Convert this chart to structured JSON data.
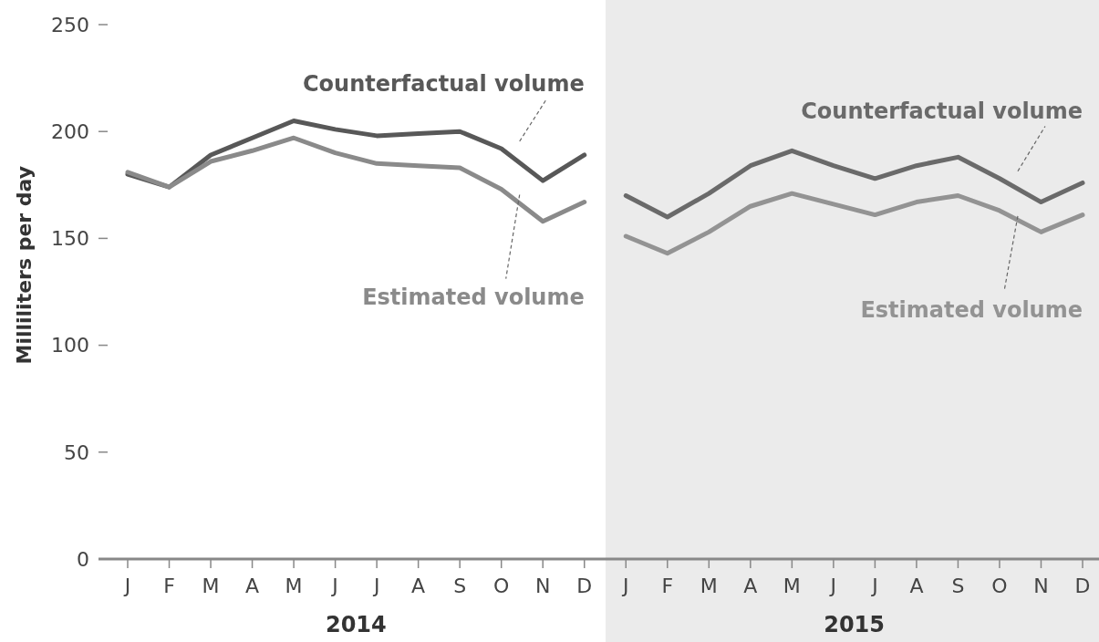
{
  "chart_data": {
    "type": "line",
    "ylabel": "Milliliters per day",
    "ylim": [
      0,
      250
    ],
    "yticks": [
      0,
      50,
      100,
      150,
      200,
      250
    ],
    "categories": [
      "J",
      "F",
      "M",
      "A",
      "M",
      "J",
      "J",
      "A",
      "S",
      "O",
      "N",
      "D",
      "J",
      "F",
      "M",
      "A",
      "M",
      "J",
      "J",
      "A",
      "S",
      "O",
      "N",
      "D"
    ],
    "annotations": [
      "2014",
      "2015"
    ],
    "series": [
      {
        "name": "Counterfactual volume",
        "color": "#585858",
        "values": [
          180,
          174,
          189,
          197,
          205,
          201,
          198,
          199,
          200,
          192,
          177,
          189,
          null,
          null,
          null,
          null,
          null,
          null,
          null,
          null,
          null,
          null,
          null,
          null
        ]
      },
      {
        "name": "Estimated volume",
        "color": "#8a8a8a",
        "values": [
          181,
          174,
          186,
          191,
          197,
          190,
          185,
          184,
          183,
          173,
          158,
          167,
          null,
          null,
          null,
          null,
          null,
          null,
          null,
          null,
          null,
          null,
          null,
          null
        ]
      },
      {
        "name": "Counterfactual volume",
        "color": "#6a6a6a",
        "values": [
          null,
          null,
          null,
          null,
          null,
          null,
          null,
          null,
          null,
          null,
          null,
          null,
          170,
          160,
          171,
          184,
          191,
          184,
          178,
          184,
          188,
          178,
          167,
          176
        ]
      },
      {
        "name": "Estimated volume",
        "color": "#939393",
        "values": [
          null,
          null,
          null,
          null,
          null,
          null,
          null,
          null,
          null,
          null,
          null,
          null,
          151,
          143,
          153,
          165,
          171,
          166,
          161,
          167,
          170,
          163,
          153,
          161
        ]
      }
    ]
  }
}
